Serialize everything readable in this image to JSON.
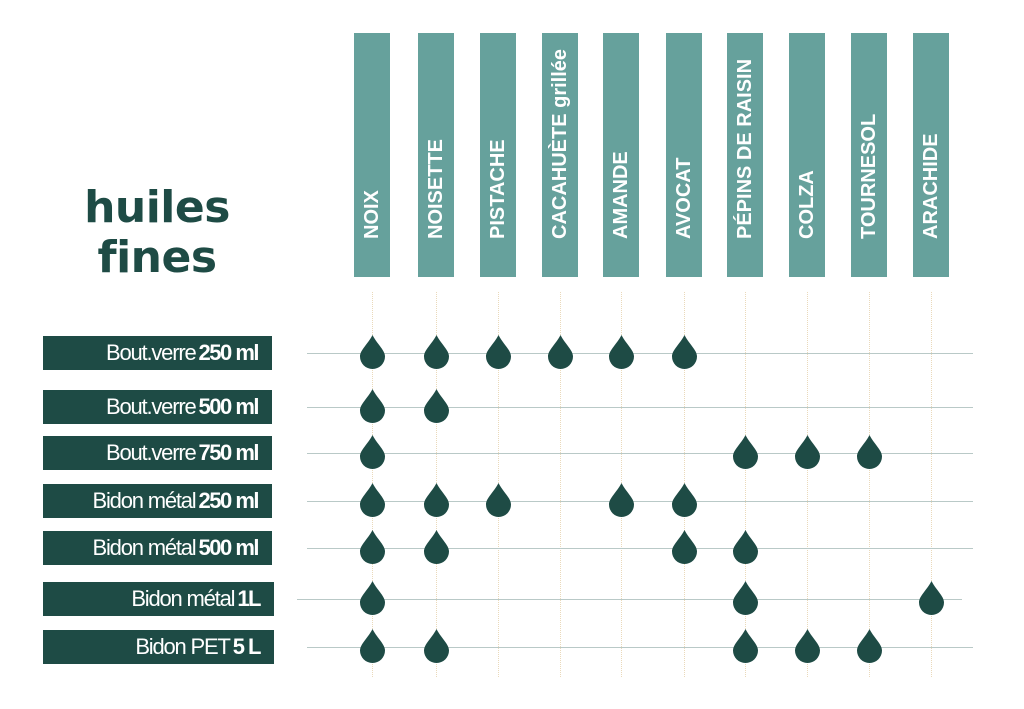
{
  "title": {
    "line1": "huiles",
    "line2": "fines"
  },
  "columns": [
    "NOIX",
    "NOISETTE",
    "PISTACHE",
    "CACAHUÈTE grillée",
    "AMANDE",
    "AVOCAT",
    "PÉPINS DE RAISIN",
    "COLZA",
    "TOURNESOL",
    "ARACHIDE"
  ],
  "rows": [
    {
      "label_main": "Bout.verre",
      "label_bold": "250 ml",
      "available": [
        0,
        1,
        2,
        3,
        4,
        5
      ]
    },
    {
      "label_main": "Bout.verre",
      "label_bold": "500 ml",
      "available": [
        0,
        1
      ]
    },
    {
      "label_main": "Bout.verre",
      "label_bold": "750 ml",
      "available": [
        0,
        6,
        7,
        8
      ]
    },
    {
      "label_main": "Bidon métal",
      "label_bold": "250 ml",
      "available": [
        0,
        1,
        2,
        4,
        5
      ]
    },
    {
      "label_main": "Bidon métal",
      "label_bold": "500 ml",
      "available": [
        0,
        1,
        5,
        6
      ]
    },
    {
      "label_main": "Bidon métal",
      "label_bold": "1L",
      "available": [
        0,
        6,
        9
      ]
    },
    {
      "label_main": "Bidon PET",
      "label_bold": "5 L",
      "available": [
        0,
        1,
        6,
        7,
        8
      ]
    }
  ],
  "colors": {
    "dark": "#1e4b45",
    "header": "#66a19c",
    "line": "#b9c9c7",
    "guide": "#ead9ba"
  },
  "icon": "oil-drop-icon"
}
